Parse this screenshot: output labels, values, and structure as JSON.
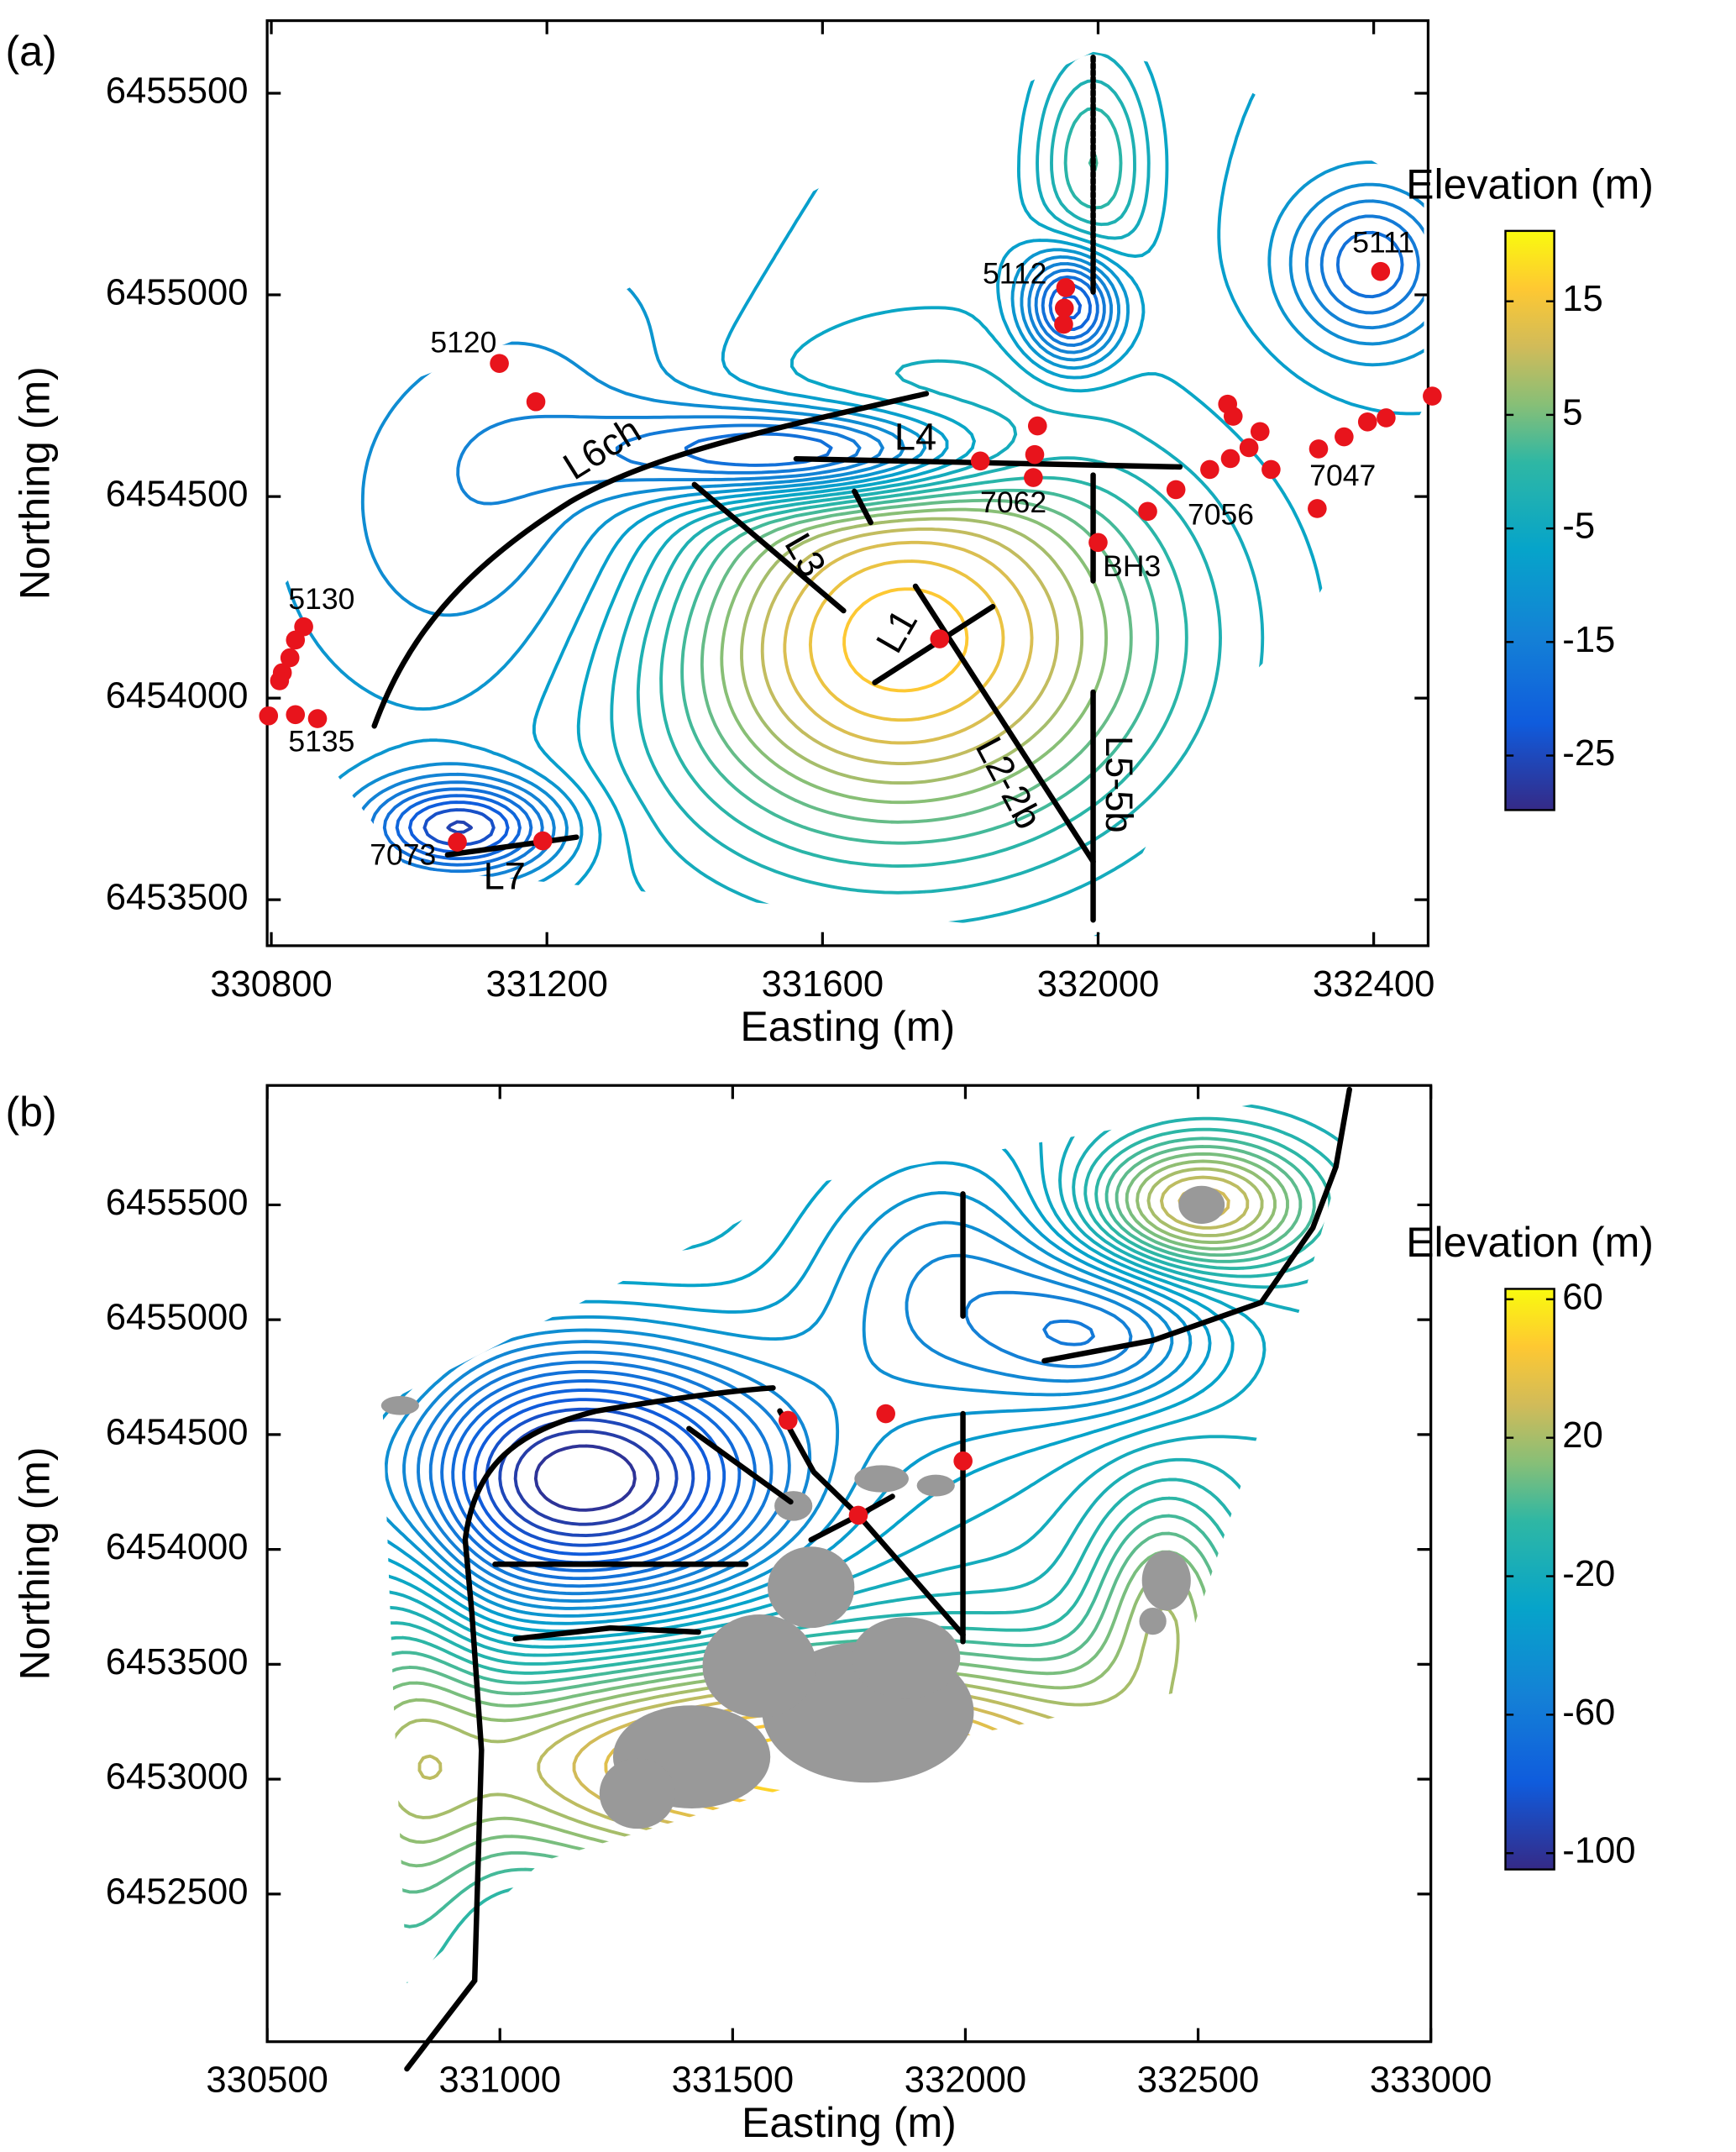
{
  "chart_data": [
    {
      "type": "scatter",
      "panel_label": "(a)",
      "xlabel": "Easting (m)",
      "ylabel": "Northing (m)",
      "xlim": [
        330794,
        332479
      ],
      "ylim": [
        6453386,
        6455680
      ],
      "xticks": [
        330800,
        331200,
        331600,
        332000,
        332400
      ],
      "yticks": [
        6453500,
        6454000,
        6454500,
        6455000,
        6455500
      ],
      "colorbar": {
        "label": "Elevation (m)",
        "lim": [
          -29.8,
          21.2
        ],
        "ticks": [
          -25,
          -15,
          -5,
          5,
          15
        ]
      },
      "points": {
        "color": "#e8141c",
        "x": [
          332410,
          331953,
          331951,
          331950,
          331131,
          331184,
          331829,
          331912,
          331908,
          331906,
          332000,
          332072,
          332113,
          332162,
          332192,
          332188,
          332196,
          332219,
          332235,
          332251,
          332320,
          332318,
          332357,
          332391,
          332418,
          332485,
          331770,
          330847,
          330835,
          330827,
          330816,
          330812,
          330796,
          330835,
          330867,
          331070,
          331194
        ],
        "y": [
          6455058,
          6455018,
          6454967,
          6454927,
          6454830,
          6454735,
          6454588,
          6454675,
          6454604,
          6454547,
          6454386,
          6454463,
          6454517,
          6454567,
          6454594,
          6454729,
          6454699,
          6454621,
          6454661,
          6454567,
          6454618,
          6454470,
          6454648,
          6454685,
          6454695,
          6454749,
          6454147,
          6454177,
          6454144,
          6454100,
          6454063,
          6454043,
          6453956,
          6453959,
          6453949,
          6453643,
          6453646
        ]
      },
      "annotations": [
        {
          "text": "5111",
          "x": 332414,
          "y": 6455125
        },
        {
          "text": "5112",
          "x": 331879,
          "y": 6455048
        },
        {
          "text": "5120",
          "x": 331079,
          "y": 6454877
        },
        {
          "text": "5130",
          "x": 330873,
          "y": 6454241
        },
        {
          "text": "5135",
          "x": 330873,
          "y": 6453888
        },
        {
          "text": "7073",
          "x": 330991,
          "y": 6453606
        },
        {
          "text": "7062",
          "x": 331877,
          "y": 6454480
        },
        {
          "text": "7056",
          "x": 332178,
          "y": 6454450
        },
        {
          "text": "7047",
          "x": 332355,
          "y": 6454547
        },
        {
          "text": "BH3",
          "x": 332049,
          "y": 6454322
        }
      ],
      "survey_lines": [
        "L6ch",
        "L4",
        "L3",
        "L1",
        "L2-2b",
        "L5-5b",
        "L7"
      ]
    },
    {
      "type": "scatter",
      "panel_label": "(b)",
      "xlabel": "Easting (m)",
      "ylabel": "Northing (m)",
      "xlim": [
        330500,
        333000
      ],
      "ylim": [
        6451857,
        6456020
      ],
      "xticks": [
        330500,
        331000,
        331500,
        332000,
        332500,
        333000
      ],
      "yticks": [
        6452500,
        6453000,
        6453500,
        6454000,
        6454500,
        6455000,
        6455500
      ],
      "colorbar": {
        "label": "Elevation (m)",
        "lim": [
          -104.7,
          63
        ],
        "ticks": [
          -100,
          -60,
          -20,
          20,
          60
        ]
      },
      "points": {
        "color": "#e8141c",
        "x": [
          331619,
          331829,
          331770,
          331995
        ],
        "y": [
          6454562,
          6454591,
          6454149,
          6454385
        ]
      }
    }
  ]
}
